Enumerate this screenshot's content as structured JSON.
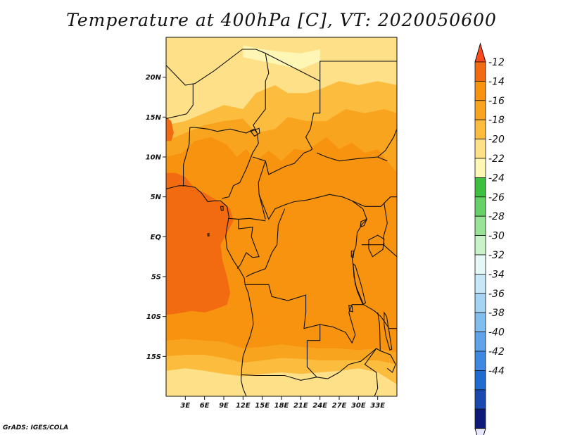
{
  "title": "Temperature at 400hPa [C], VT: 2020050600",
  "credit": "GrADS: IGES/COLA",
  "map": {
    "lon_range": [
      0,
      36
    ],
    "lat_range": [
      -20,
      25
    ],
    "lat_ticks": [
      {
        "value": 20,
        "label": "20N"
      },
      {
        "value": 15,
        "label": "15N"
      },
      {
        "value": 10,
        "label": "10N"
      },
      {
        "value": 5,
        "label": "5N"
      },
      {
        "value": 0,
        "label": "EQ"
      },
      {
        "value": -5,
        "label": "5S"
      },
      {
        "value": -10,
        "label": "10S"
      },
      {
        "value": -15,
        "label": "15S"
      }
    ],
    "lon_ticks": [
      {
        "value": 3,
        "label": "3E"
      },
      {
        "value": 6,
        "label": "6E"
      },
      {
        "value": 9,
        "label": "9E"
      },
      {
        "value": 12,
        "label": "12E"
      },
      {
        "value": 15,
        "label": "15E"
      },
      {
        "value": 18,
        "label": "18E"
      },
      {
        "value": 21,
        "label": "21E"
      },
      {
        "value": 24,
        "label": "24E"
      },
      {
        "value": 27,
        "label": "27E"
      },
      {
        "value": 30,
        "label": "30E"
      },
      {
        "value": 33,
        "label": "33E"
      }
    ]
  },
  "colorbar": {
    "top_arrow_color": "#ff4a1c",
    "bottom_arrow_color": "#e8e8ff",
    "bins": [
      {
        "color": "#f26b10"
      },
      {
        "color": "#f7930f"
      },
      {
        "color": "#f8a41e"
      },
      {
        "color": "#fcbc3e"
      },
      {
        "color": "#fde088"
      },
      {
        "color": "#fef6b4"
      },
      {
        "color": "#3fbf3f"
      },
      {
        "color": "#66d166"
      },
      {
        "color": "#99e399"
      },
      {
        "color": "#c9f2c9"
      },
      {
        "color": "#e6f8f5"
      },
      {
        "color": "#c7e6f6"
      },
      {
        "color": "#a5d3f4"
      },
      {
        "color": "#82bdef"
      },
      {
        "color": "#5fa4ea"
      },
      {
        "color": "#3d88e1"
      },
      {
        "color": "#1f6bd1"
      },
      {
        "color": "#1848b0"
      },
      {
        "color": "#0f1a78"
      }
    ],
    "labels": [
      "-12",
      "-14",
      "-16",
      "-18",
      "-20",
      "-22",
      "-24",
      "-26",
      "-28",
      "-30",
      "-32",
      "-34",
      "-36",
      "-38",
      "-40",
      "-42",
      "-44"
    ]
  },
  "field_colors": {
    "warm1": "#f26b10",
    "warm2": "#f7930f",
    "warm3": "#f8a41e",
    "warm4": "#fcbc3e",
    "warm5": "#fde088",
    "warm6": "#fef6b4",
    "border": "#111111"
  }
}
